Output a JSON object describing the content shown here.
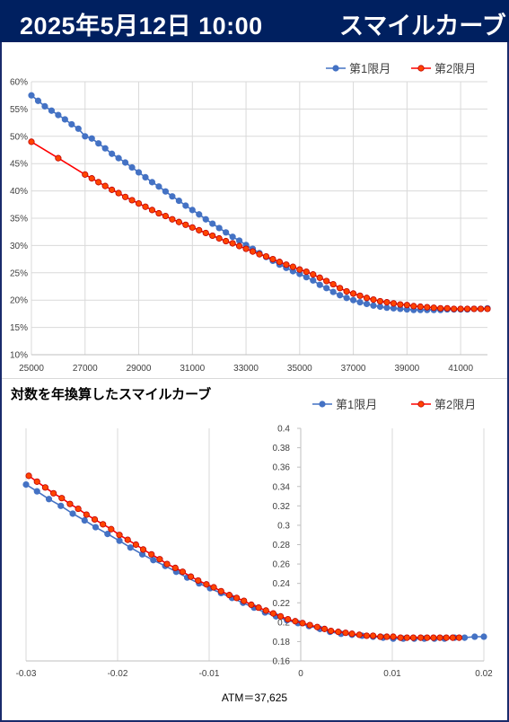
{
  "header": {
    "date": "2025年5月12日 10:00",
    "title": "スマイルカーブ"
  },
  "colors": {
    "header_bg": "#002060",
    "series1": "#4472c4",
    "series2": "#ff0000",
    "series2_marker": "#ff4500"
  },
  "chart_data": [
    {
      "type": "line",
      "title": "",
      "xlabel": "",
      "ylabel": "",
      "xlim": [
        25000,
        42000
      ],
      "ylim": [
        0.1,
        0.6
      ],
      "x_ticks": [
        25000,
        27000,
        29000,
        31000,
        33000,
        35000,
        37000,
        39000,
        41000
      ],
      "x_tick_labels": [
        "25000",
        "27000",
        "29000",
        "31000",
        "33000",
        "35000",
        "37000",
        "39000",
        "41000"
      ],
      "y_ticks": [
        0.1,
        0.15,
        0.2,
        0.25,
        0.3,
        0.35,
        0.4,
        0.45,
        0.5,
        0.55,
        0.6
      ],
      "y_tick_labels": [
        "10%",
        "15%",
        "20%",
        "25%",
        "30%",
        "35%",
        "40%",
        "45%",
        "50%",
        "55%",
        "60%"
      ],
      "grid": true,
      "legend": "top-right",
      "series": [
        {
          "name": "第1限月",
          "x": [
            25000,
            25250,
            25500,
            25750,
            26000,
            26250,
            26500,
            26750,
            27000,
            27250,
            27500,
            27750,
            28000,
            28250,
            28500,
            28750,
            29000,
            29250,
            29500,
            29750,
            30000,
            30250,
            30500,
            30750,
            31000,
            31250,
            31500,
            31750,
            32000,
            32250,
            32500,
            32750,
            33000,
            33250,
            33500,
            33750,
            34000,
            34250,
            34500,
            34750,
            35000,
            35250,
            35500,
            35750,
            36000,
            36250,
            36500,
            36750,
            37000,
            37250,
            37500,
            37750,
            38000,
            38250,
            38500,
            38750,
            39000,
            39250,
            39500,
            39750,
            40000,
            40250,
            40500,
            40750,
            41000,
            41250,
            41500,
            41750,
            42000
          ],
          "values": [
            0.575,
            0.565,
            0.555,
            0.547,
            0.539,
            0.531,
            0.522,
            0.514,
            0.5,
            0.496,
            0.487,
            0.478,
            0.468,
            0.46,
            0.452,
            0.443,
            0.434,
            0.425,
            0.416,
            0.408,
            0.399,
            0.39,
            0.382,
            0.373,
            0.365,
            0.357,
            0.348,
            0.34,
            0.332,
            0.324,
            0.316,
            0.309,
            0.301,
            0.294,
            0.286,
            0.279,
            0.272,
            0.265,
            0.259,
            0.253,
            0.248,
            0.242,
            0.236,
            0.228,
            0.222,
            0.215,
            0.209,
            0.204,
            0.2,
            0.196,
            0.193,
            0.19,
            0.188,
            0.186,
            0.185,
            0.184,
            0.183,
            0.182,
            0.182,
            0.182,
            0.182,
            0.182,
            0.183,
            0.183,
            0.183,
            0.183,
            0.184,
            0.184,
            0.185
          ]
        },
        {
          "name": "第2限月",
          "x": [
            25000,
            26000,
            27000,
            27250,
            27500,
            27750,
            28000,
            28250,
            28500,
            28750,
            29000,
            29250,
            29500,
            29750,
            30000,
            30250,
            30500,
            30750,
            31000,
            31250,
            31500,
            31750,
            32000,
            32250,
            32500,
            32750,
            33000,
            33250,
            33500,
            33750,
            34000,
            34250,
            34500,
            34750,
            35000,
            35250,
            35500,
            35750,
            36000,
            36250,
            36500,
            36750,
            37000,
            37250,
            37500,
            37750,
            38000,
            38250,
            38500,
            38750,
            39000,
            39250,
            39500,
            39750,
            40000,
            40250,
            40500,
            40750,
            41000,
            41250,
            41500,
            41750,
            42000
          ],
          "values": [
            0.49,
            0.46,
            0.43,
            0.423,
            0.416,
            0.409,
            0.402,
            0.396,
            0.389,
            0.383,
            0.377,
            0.371,
            0.365,
            0.359,
            0.354,
            0.348,
            0.343,
            0.338,
            0.333,
            0.328,
            0.323,
            0.318,
            0.313,
            0.308,
            0.304,
            0.299,
            0.294,
            0.289,
            0.284,
            0.28,
            0.275,
            0.27,
            0.265,
            0.261,
            0.256,
            0.252,
            0.247,
            0.241,
            0.235,
            0.229,
            0.222,
            0.216,
            0.212,
            0.208,
            0.204,
            0.201,
            0.198,
            0.196,
            0.194,
            0.192,
            0.191,
            0.189,
            0.188,
            0.187,
            0.186,
            0.185,
            0.185,
            0.184,
            0.184,
            0.184,
            0.184,
            0.184,
            0.184
          ]
        }
      ]
    },
    {
      "type": "line",
      "title": "対数を年換算したスマイルカーブ",
      "xlabel": "ATM＝37,625",
      "ylabel": "",
      "xlim": [
        -0.03,
        0.02
      ],
      "ylim": [
        0.16,
        0.4
      ],
      "x_ticks": [
        -0.03,
        -0.02,
        -0.01,
        0,
        0.01,
        0.02
      ],
      "x_tick_labels": [
        "-0.03",
        "-0.02",
        "-0.01",
        "0",
        "0.01",
        "0.02"
      ],
      "y_ticks": [
        0.16,
        0.18,
        0.2,
        0.22,
        0.24,
        0.26,
        0.28,
        0.3,
        0.32,
        0.34,
        0.36,
        0.38,
        0.4
      ],
      "y_tick_labels": [
        "0.16",
        "0.18",
        "0.2",
        "0.22",
        "0.24",
        "0.26",
        "0.28",
        "0.3",
        "0.32",
        "0.34",
        "0.36",
        "0.38",
        "0.4"
      ],
      "grid": "vertical",
      "legend": "top-right",
      "series": [
        {
          "name": "第1限月",
          "x": [
            -0.03,
            -0.0288,
            -0.0275,
            -0.0262,
            -0.0249,
            -0.0236,
            -0.0224,
            -0.0211,
            -0.0198,
            -0.0186,
            -0.0173,
            -0.0161,
            -0.0148,
            -0.0136,
            -0.0124,
            -0.0111,
            -0.0099,
            -0.0087,
            -0.0075,
            -0.0063,
            -0.0051,
            -0.0039,
            -0.0027,
            -0.0015,
            -0.0003,
            0.0009,
            0.0021,
            0.0032,
            0.0044,
            0.0056,
            0.0067,
            0.0079,
            0.009,
            0.0101,
            0.0112,
            0.0124,
            0.0135,
            0.0146,
            0.0157,
            0.0168,
            0.0179,
            0.019,
            0.02
          ],
          "values": [
            0.342,
            0.335,
            0.327,
            0.32,
            0.312,
            0.305,
            0.298,
            0.291,
            0.284,
            0.277,
            0.27,
            0.264,
            0.258,
            0.252,
            0.246,
            0.24,
            0.235,
            0.23,
            0.225,
            0.22,
            0.215,
            0.21,
            0.206,
            0.202,
            0.199,
            0.196,
            0.193,
            0.19,
            0.188,
            0.187,
            0.186,
            0.185,
            0.184,
            0.183,
            0.183,
            0.183,
            0.183,
            0.183,
            0.183,
            0.184,
            0.184,
            0.185,
            0.185
          ]
        },
        {
          "name": "第2限月",
          "x": [
            -0.0297,
            -0.0288,
            -0.0279,
            -0.027,
            -0.0261,
            -0.0252,
            -0.0243,
            -0.0234,
            -0.0225,
            -0.0216,
            -0.0207,
            -0.0198,
            -0.0189,
            -0.018,
            -0.0172,
            -0.0163,
            -0.0154,
            -0.0146,
            -0.0137,
            -0.0129,
            -0.012,
            -0.0112,
            -0.0103,
            -0.0095,
            -0.0087,
            -0.0078,
            -0.007,
            -0.0062,
            -0.0054,
            -0.0046,
            -0.0038,
            -0.003,
            -0.0022,
            -0.0014,
            -0.0006,
            0.0002,
            0.001,
            0.0018,
            0.0026,
            0.0033,
            0.0041,
            0.0049,
            0.0056,
            0.0064,
            0.0072,
            0.0079,
            0.0087,
            0.0094,
            0.0101,
            0.0109,
            0.0116,
            0.0123,
            0.0131,
            0.0138,
            0.0145,
            0.0152,
            0.0159,
            0.0166,
            0.0173
          ],
          "values": [
            0.351,
            0.345,
            0.339,
            0.333,
            0.328,
            0.322,
            0.317,
            0.311,
            0.306,
            0.301,
            0.296,
            0.29,
            0.285,
            0.28,
            0.275,
            0.27,
            0.265,
            0.26,
            0.256,
            0.252,
            0.247,
            0.243,
            0.239,
            0.236,
            0.232,
            0.228,
            0.225,
            0.222,
            0.218,
            0.215,
            0.212,
            0.209,
            0.206,
            0.203,
            0.201,
            0.199,
            0.197,
            0.195,
            0.193,
            0.191,
            0.19,
            0.189,
            0.188,
            0.187,
            0.186,
            0.186,
            0.185,
            0.185,
            0.185,
            0.184,
            0.184,
            0.184,
            0.184,
            0.184,
            0.184,
            0.184,
            0.184,
            0.184,
            0.184
          ]
        }
      ]
    }
  ]
}
